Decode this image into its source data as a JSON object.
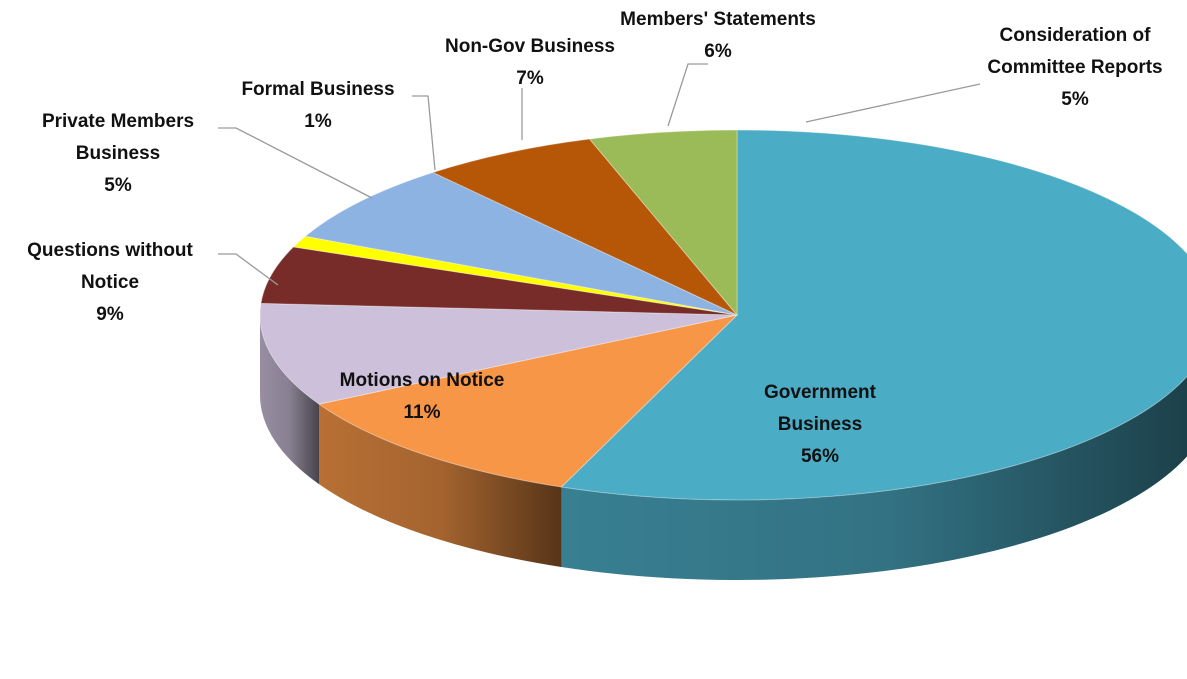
{
  "chart_data": {
    "type": "pie",
    "title": "",
    "style": "3d-tilted",
    "slices": [
      {
        "name": "Government Business",
        "name_lines": [
          "Government",
          "Business"
        ],
        "value": 56,
        "value_label": "56%",
        "color": "#4BACC6"
      },
      {
        "name": "Motions on Notice",
        "name_lines": [
          "Motions on Notice"
        ],
        "value": 11,
        "value_label": "11%",
        "color": "#F79646"
      },
      {
        "name": "Questions without Notice",
        "name_lines": [
          "Questions without",
          "Notice"
        ],
        "value": 9,
        "value_label": "9%",
        "color": "#CCC0DA"
      },
      {
        "name": "Private Members Business",
        "name_lines": [
          "Private Members",
          "Business"
        ],
        "value": 5,
        "value_label": "5%",
        "color": "#772C2A"
      },
      {
        "name": "Formal Business",
        "name_lines": [
          "Formal Business"
        ],
        "value": 1,
        "value_label": "1%",
        "color": "#FFFF00"
      },
      {
        "name": "Non-Gov Business",
        "name_lines": [
          "Non-Gov Business"
        ],
        "value": 7,
        "value_label": "7%",
        "color": "#8DB3E2"
      },
      {
        "name": "Members' Statements",
        "name_lines": [
          "Members' Statements"
        ],
        "value": 6,
        "value_label": "6%",
        "color": "#B65708"
      },
      {
        "name": "Consideration of Committee Reports",
        "name_lines": [
          "Consideration of",
          "Committee Reports"
        ],
        "value": 5,
        "value_label": "5%",
        "color": "#9BBB59"
      }
    ]
  }
}
